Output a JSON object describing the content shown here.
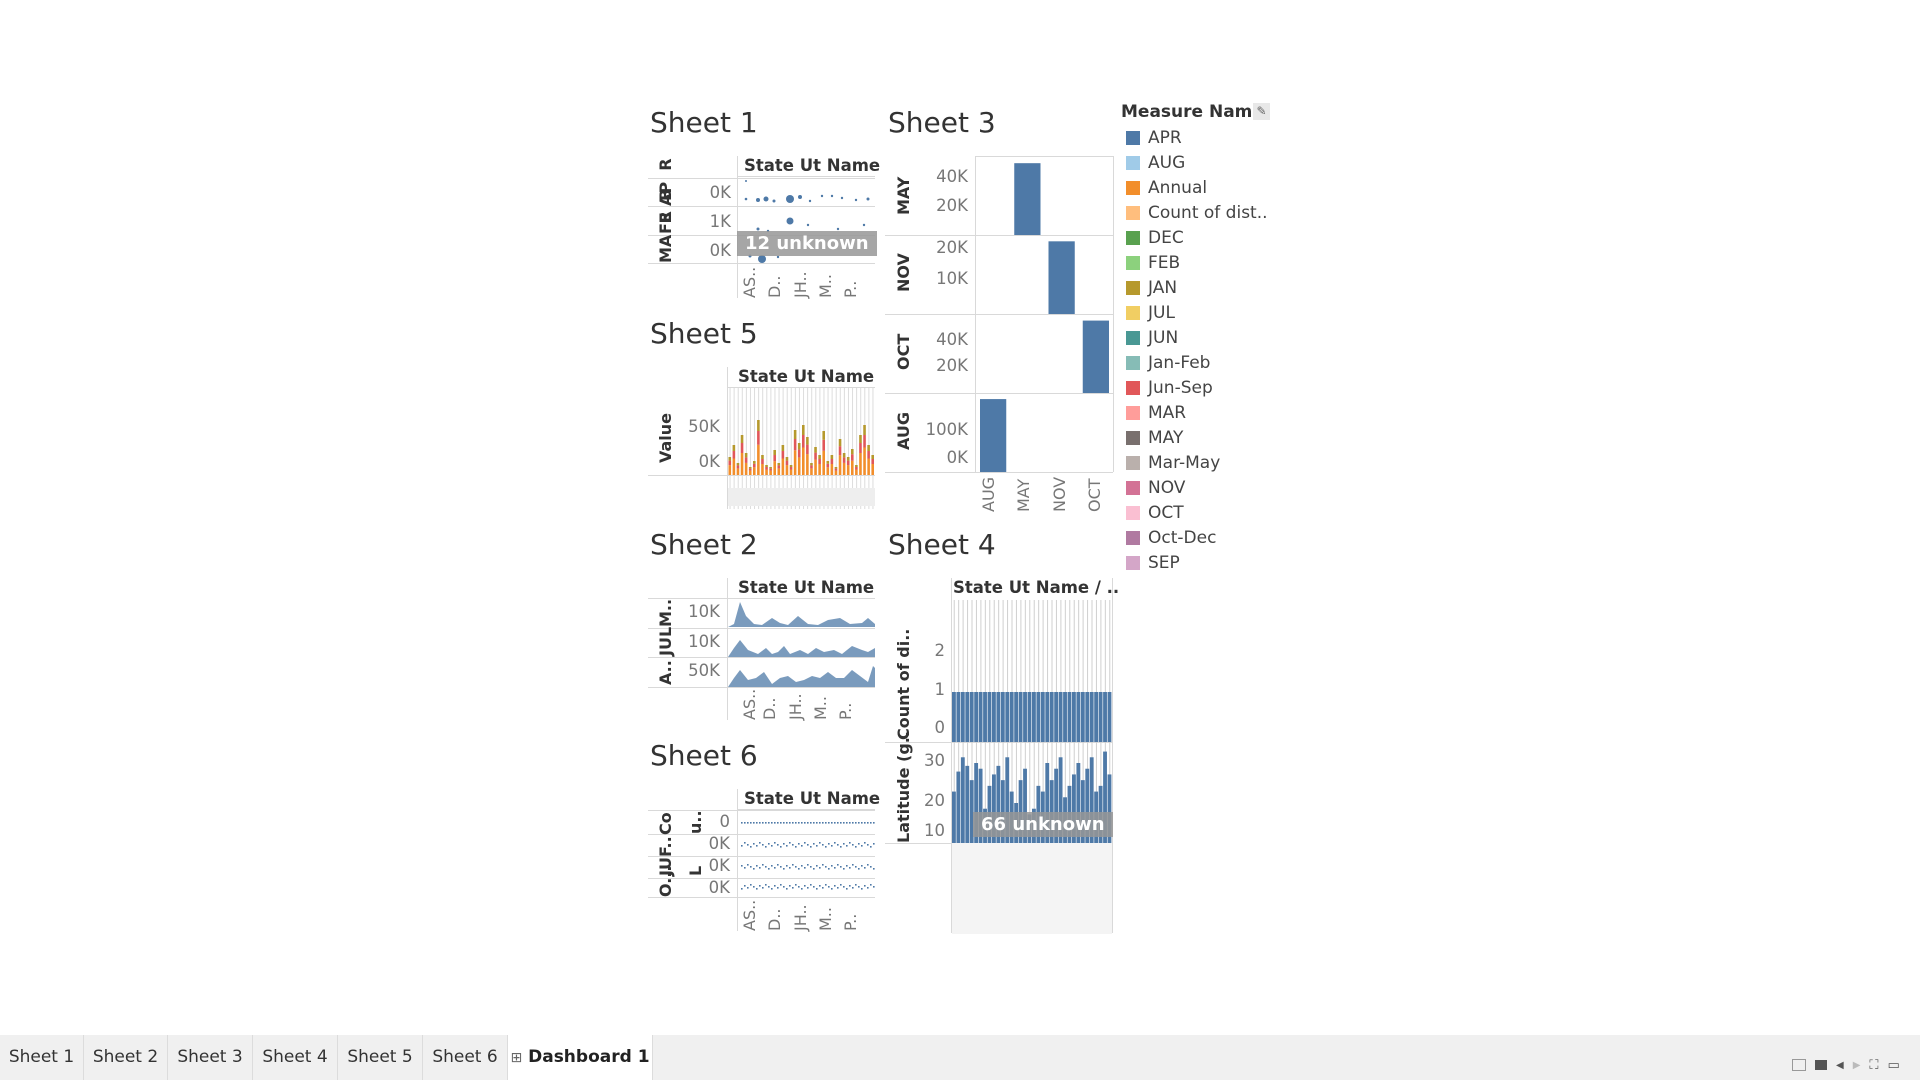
{
  "sheets": {
    "sheet1": {
      "title": "Sheet 1",
      "header": "State Ut Name",
      "rows": [
        "AP R",
        "FE B",
        "MA R"
      ],
      "ticks": [
        "0K",
        "1K",
        "0K"
      ],
      "badge": "12 unknown",
      "xlabels": [
        "AS..",
        "D..",
        "JH..",
        "M..",
        "P.."
      ]
    },
    "sheet5": {
      "title": "Sheet 5",
      "header": "State Ut Name",
      "ylabel": "Value",
      "ticks": [
        "50K",
        "0K"
      ]
    },
    "sheet2": {
      "title": "Sheet 2",
      "header": "State Ut Name",
      "rows": [
        "M..",
        "JUL",
        "A.."
      ],
      "ticks": [
        "10K",
        "10K",
        "50K"
      ],
      "xlabels": [
        "AS..",
        "D..",
        "JH..",
        "M..",
        "P.."
      ]
    },
    "sheet6": {
      "title": "Sheet 6",
      "header": "State Ut Name",
      "rows": [
        "Co",
        "JUF..",
        "O..."
      ],
      "rowlabels2": [
        "u..",
        "L"
      ],
      "ticks": [
        "0",
        "0K",
        "0K",
        "0K"
      ],
      "xlabels": [
        "AS..",
        "D..",
        "JH..",
        "M..",
        "P.."
      ]
    },
    "sheet3": {
      "title": "Sheet 3",
      "rows": [
        {
          "label": "MAY",
          "ticks": [
            "40K",
            "20K"
          ]
        },
        {
          "label": "NOV",
          "ticks": [
            "20K",
            "10K"
          ]
        },
        {
          "label": "OCT",
          "ticks": [
            "40K",
            "20K"
          ]
        },
        {
          "label": "AUG",
          "ticks": [
            "100K",
            "0K"
          ]
        }
      ],
      "xlabels": [
        "AUG",
        "MAY",
        "NOV",
        "OCT"
      ]
    },
    "sheet4": {
      "title": "Sheet 4",
      "header": "State Ut Name / ..",
      "ylabel1": "Count of di..",
      "ylabel2": "Latitude (g..",
      "ticks1": [
        "2",
        "1",
        "0"
      ],
      "ticks2": [
        "30",
        "20",
        "10"
      ],
      "badge": "66 unknown"
    }
  },
  "legend": {
    "title": "Measure Names",
    "items": [
      {
        "label": "APR",
        "color": "#4e79a7"
      },
      {
        "label": "AUG",
        "color": "#a0cbe8"
      },
      {
        "label": "Annual",
        "color": "#f28e2b"
      },
      {
        "label": "Count of dist..",
        "color": "#ffbe7d"
      },
      {
        "label": "DEC",
        "color": "#59a14f"
      },
      {
        "label": "FEB",
        "color": "#8cd17d"
      },
      {
        "label": "JAN",
        "color": "#b6992d"
      },
      {
        "label": "JUL",
        "color": "#f1ce63"
      },
      {
        "label": "JUN",
        "color": "#499894"
      },
      {
        "label": "Jan-Feb",
        "color": "#86bcb6"
      },
      {
        "label": "Jun-Sep",
        "color": "#e15759"
      },
      {
        "label": "MAR",
        "color": "#ff9d9a"
      },
      {
        "label": "MAY",
        "color": "#79706e"
      },
      {
        "label": "Mar-May",
        "color": "#bab0ac"
      },
      {
        "label": "NOV",
        "color": "#d37295"
      },
      {
        "label": "OCT",
        "color": "#fabfd2"
      },
      {
        "label": "Oct-Dec",
        "color": "#b07aa1"
      },
      {
        "label": "SEP",
        "color": "#d4a6c8"
      }
    ]
  },
  "tabs": [
    "Sheet 1",
    "Sheet 2",
    "Sheet 3",
    "Sheet 4",
    "Sheet 5",
    "Sheet 6",
    "Dashboard 1"
  ],
  "active_tab": "Dashboard 1",
  "chart_data": [
    {
      "type": "bar",
      "title": "Sheet 3",
      "categories": [
        "AUG",
        "MAY",
        "NOV",
        "OCT"
      ],
      "series": [
        {
          "values": [
            120000,
            50000,
            23000,
            55000
          ]
        }
      ]
    }
  ],
  "colors": {
    "bar_blue": "#4e79a7",
    "orange": "#f28e2b"
  }
}
